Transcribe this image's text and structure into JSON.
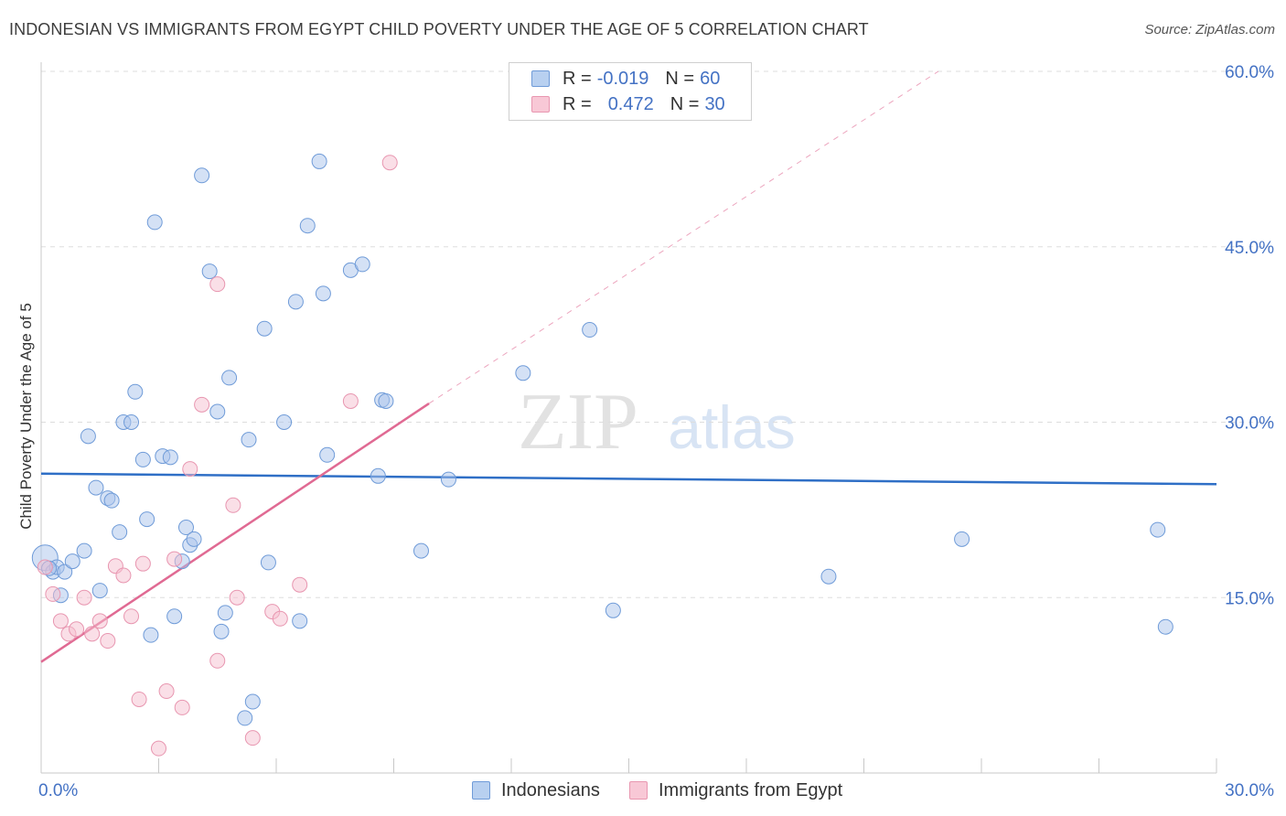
{
  "header": {
    "title": "INDONESIAN VS IMMIGRANTS FROM EGYPT CHILD POVERTY UNDER THE AGE OF 5 CORRELATION CHART",
    "source": "Source: ZipAtlas.com"
  },
  "watermark": {
    "zip": "ZIP",
    "atlas": "atlas"
  },
  "legend": {
    "r_label": "R =",
    "n_label": "N =",
    "rows": [
      {
        "r": "-0.019",
        "n": "60",
        "color": "#a9c4eb",
        "border": "#6f9bd8"
      },
      {
        "r": "0.472",
        "n": "30",
        "color": "#f6bfd0",
        "border": "#e896b0"
      }
    ]
  },
  "bottom_legend": [
    {
      "label": "Indonesians",
      "color": "#b8d0f0",
      "border": "#6f9bd8"
    },
    {
      "label": "Immigrants from Egypt",
      "color": "#f8c8d6",
      "border": "#e896b0"
    }
  ],
  "chart_data": {
    "type": "scatter",
    "ylabel": "Child Poverty Under the Age of 5",
    "xlabel": "",
    "xlim": [
      0,
      30
    ],
    "ylim": [
      0,
      60
    ],
    "x_tick_labels": [
      {
        "value": 0,
        "label": "0.0%"
      },
      {
        "value": 30,
        "label": "30.0%"
      }
    ],
    "y_tick_labels": [
      {
        "value": 15,
        "label": "15.0%"
      },
      {
        "value": 30,
        "label": "30.0%"
      },
      {
        "value": 45,
        "label": "45.0%"
      },
      {
        "value": 60,
        "label": "60.0%"
      }
    ],
    "series": [
      {
        "name": "Indonesians",
        "color": "#a9c4eb",
        "stroke": "#6f9bd8",
        "trend": {
          "x": [
            0,
            30
          ],
          "y": [
            25.6,
            24.7
          ],
          "color": "#2f6fc6",
          "dashed_extension": false
        },
        "points": [
          [
            0.1,
            18.4
          ],
          [
            0.3,
            17.2
          ],
          [
            0.4,
            17.6
          ],
          [
            0.5,
            15.2
          ],
          [
            0.6,
            17.2
          ],
          [
            0.8,
            18.1
          ],
          [
            1.1,
            19.0
          ],
          [
            1.2,
            28.8
          ],
          [
            1.4,
            24.4
          ],
          [
            1.5,
            15.6
          ],
          [
            1.7,
            23.5
          ],
          [
            1.8,
            23.3
          ],
          [
            2.1,
            30.0
          ],
          [
            2.0,
            20.6
          ],
          [
            2.3,
            30.0
          ],
          [
            2.4,
            32.6
          ],
          [
            2.6,
            26.8
          ],
          [
            2.7,
            21.7
          ],
          [
            2.8,
            11.8
          ],
          [
            2.9,
            47.1
          ],
          [
            3.1,
            27.1
          ],
          [
            3.3,
            27.0
          ],
          [
            3.4,
            13.4
          ],
          [
            3.6,
            18.1
          ],
          [
            3.7,
            21.0
          ],
          [
            3.8,
            19.5
          ],
          [
            3.9,
            20.0
          ],
          [
            4.1,
            51.1
          ],
          [
            4.3,
            42.9
          ],
          [
            4.5,
            30.9
          ],
          [
            4.6,
            12.1
          ],
          [
            4.7,
            13.7
          ],
          [
            4.8,
            33.8
          ],
          [
            5.2,
            4.7
          ],
          [
            5.3,
            28.5
          ],
          [
            5.4,
            6.1
          ],
          [
            5.7,
            38.0
          ],
          [
            5.8,
            18.0
          ],
          [
            6.2,
            30.0
          ],
          [
            6.5,
            40.3
          ],
          [
            6.6,
            13.0
          ],
          [
            6.8,
            46.8
          ],
          [
            7.1,
            52.3
          ],
          [
            7.2,
            41.0
          ],
          [
            7.3,
            27.2
          ],
          [
            7.9,
            43.0
          ],
          [
            8.2,
            43.5
          ],
          [
            8.7,
            31.9
          ],
          [
            8.8,
            31.8
          ],
          [
            8.6,
            25.4
          ],
          [
            9.7,
            19.0
          ],
          [
            10.4,
            25.1
          ],
          [
            12.3,
            34.2
          ],
          [
            14.0,
            37.9
          ],
          [
            14.6,
            13.9
          ],
          [
            20.1,
            16.8
          ],
          [
            23.5,
            20.0
          ],
          [
            28.5,
            20.8
          ],
          [
            28.7,
            12.5
          ],
          [
            0.2,
            17.5
          ]
        ]
      },
      {
        "name": "Immigrants from Egypt",
        "color": "#f6bfd0",
        "stroke": "#e896b0",
        "trend": {
          "x": [
            0,
            9.9
          ],
          "y": [
            9.5,
            31.6
          ],
          "color": "#e06a93",
          "dashed_extension": true,
          "dashed_to": [
            22.9,
            60.0
          ]
        },
        "points": [
          [
            0.1,
            17.6
          ],
          [
            0.3,
            15.3
          ],
          [
            0.5,
            13.0
          ],
          [
            0.7,
            11.9
          ],
          [
            0.9,
            12.3
          ],
          [
            1.1,
            15.0
          ],
          [
            1.3,
            11.9
          ],
          [
            1.5,
            13.0
          ],
          [
            1.7,
            11.3
          ],
          [
            1.9,
            17.7
          ],
          [
            2.1,
            16.9
          ],
          [
            2.3,
            13.4
          ],
          [
            2.5,
            6.3
          ],
          [
            2.6,
            17.9
          ],
          [
            3.0,
            2.1
          ],
          [
            3.2,
            7.0
          ],
          [
            3.4,
            18.3
          ],
          [
            3.6,
            5.6
          ],
          [
            3.8,
            26.0
          ],
          [
            4.1,
            31.5
          ],
          [
            4.5,
            41.8
          ],
          [
            4.5,
            9.6
          ],
          [
            4.9,
            22.9
          ],
          [
            5.0,
            15.0
          ],
          [
            5.4,
            3.0
          ],
          [
            5.9,
            13.8
          ],
          [
            6.1,
            13.2
          ],
          [
            6.6,
            16.1
          ],
          [
            7.9,
            31.8
          ],
          [
            8.9,
            52.2
          ]
        ]
      }
    ]
  }
}
